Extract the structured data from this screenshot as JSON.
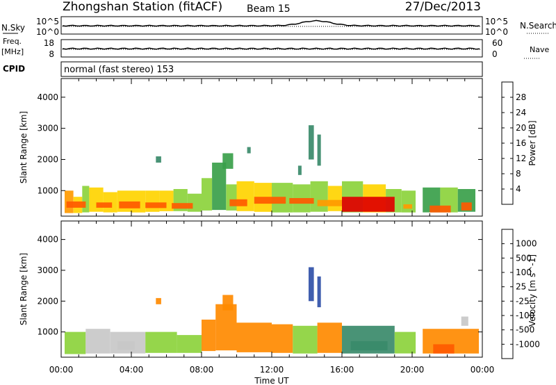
{
  "header": {
    "title": "Zhongshan Station (fitACF)",
    "beam": "Beam 15",
    "date": "27/Dec/2013"
  },
  "params": {
    "nsky_label": "N.Sky",
    "nsky_ticks": [
      "10^5",
      "10^0"
    ],
    "nsearch_label": "N.Search",
    "nsearch_ticks": [
      "10^5",
      "10^0"
    ],
    "freq_label": "Freq.",
    "freq_unit": "[MHz]",
    "freq_ticks": [
      "18",
      "8"
    ],
    "nave_label": "Nave",
    "nave_ticks": [
      "60",
      "0"
    ],
    "cpid_label": "CPID",
    "cpid_text": "normal (fast stereo) 153"
  },
  "chart_data": [
    {
      "type": "heatmap",
      "name": "power",
      "ylabel": "Slant Range [km]",
      "xlabel": "",
      "xlim": [
        0,
        24
      ],
      "ylim": [
        180,
        4600
      ],
      "y_ticks": [
        "4000",
        "3000",
        "2000",
        "1000"
      ],
      "colorbar": {
        "label": "Power [dB]",
        "ticks": [
          "28",
          "24",
          "20",
          "16",
          "12",
          "8",
          "4"
        ],
        "colors": [
          "#e00000",
          "#ff5a00",
          "#ff9a00",
          "#ffd400",
          "#8cd23c",
          "#3aa04a",
          "#3a8a6a",
          "#2a4aa6",
          "#1010f0"
        ]
      },
      "cells": [
        {
          "t": [
            0.2,
            0.7
          ],
          "r": [
            280,
            1000
          ],
          "v": 20
        },
        {
          "t": [
            0.7,
            1.2
          ],
          "r": [
            280,
            800
          ],
          "v": 16
        },
        {
          "t": [
            1.2,
            1.6
          ],
          "r": [
            300,
            1150
          ],
          "v": 14
        },
        {
          "t": [
            1.6,
            2.4
          ],
          "r": [
            320,
            1100
          ],
          "v": 16
        },
        {
          "t": [
            2.4,
            3.2
          ],
          "r": [
            300,
            950
          ],
          "v": 18
        },
        {
          "t": [
            3.2,
            4.0
          ],
          "r": [
            320,
            1000
          ],
          "v": 16
        },
        {
          "t": [
            4.0,
            4.8
          ],
          "r": [
            300,
            1000
          ],
          "v": 16
        },
        {
          "t": [
            4.8,
            5.6
          ],
          "r": [
            320,
            1000
          ],
          "v": 18
        },
        {
          "t": [
            5.6,
            6.4
          ],
          "r": [
            340,
            1000
          ],
          "v": 16
        },
        {
          "t": [
            6.4,
            7.2
          ],
          "r": [
            340,
            1050
          ],
          "v": 14
        },
        {
          "t": [
            7.2,
            8.0
          ],
          "r": [
            320,
            900
          ],
          "v": 12
        },
        {
          "t": [
            8.0,
            8.6
          ],
          "r": [
            360,
            1400
          ],
          "v": 12
        },
        {
          "t": [
            8.6,
            9.4
          ],
          "r": [
            380,
            1900
          ],
          "v": 10
        },
        {
          "t": [
            9.4,
            10.0
          ],
          "r": [
            360,
            1200
          ],
          "v": 14
        },
        {
          "t": [
            10.0,
            11.0
          ],
          "r": [
            340,
            1300
          ],
          "v": 16
        },
        {
          "t": [
            11.0,
            12.0
          ],
          "r": [
            320,
            1250
          ],
          "v": 16
        },
        {
          "t": [
            12.0,
            13.2
          ],
          "r": [
            300,
            1250
          ],
          "v": 14
        },
        {
          "t": [
            13.2,
            14.2
          ],
          "r": [
            300,
            1200
          ],
          "v": 14
        },
        {
          "t": [
            14.2,
            15.2
          ],
          "r": [
            320,
            1300
          ],
          "v": 12
        },
        {
          "t": [
            15.2,
            16.0
          ],
          "r": [
            340,
            1150
          ],
          "v": 16
        },
        {
          "t": [
            16.0,
            17.2
          ],
          "r": [
            300,
            1300
          ],
          "v": 14
        },
        {
          "t": [
            17.2,
            18.5
          ],
          "r": [
            300,
            1200
          ],
          "v": 16
        },
        {
          "t": [
            18.5,
            19.4
          ],
          "r": [
            300,
            1050
          ],
          "v": 14
        },
        {
          "t": [
            19.4,
            20.2
          ],
          "r": [
            300,
            1000
          ],
          "v": 12
        },
        {
          "t": [
            20.6,
            21.6
          ],
          "r": [
            300,
            1100
          ],
          "v": 10
        },
        {
          "t": [
            21.6,
            22.6
          ],
          "r": [
            300,
            1100
          ],
          "v": 12
        },
        {
          "t": [
            22.6,
            23.6
          ],
          "r": [
            320,
            1050
          ],
          "v": 10
        },
        {
          "t": [
            0.3,
            1.4
          ],
          "r": [
            450,
            650
          ],
          "v": 26
        },
        {
          "t": [
            2.0,
            2.9
          ],
          "r": [
            450,
            620
          ],
          "v": 24
        },
        {
          "t": [
            3.3,
            4.5
          ],
          "r": [
            430,
            650
          ],
          "v": 26
        },
        {
          "t": [
            4.8,
            6.0
          ],
          "r": [
            440,
            620
          ],
          "v": 24
        },
        {
          "t": [
            6.3,
            7.5
          ],
          "r": [
            420,
            600
          ],
          "v": 26
        },
        {
          "t": [
            9.6,
            10.6
          ],
          "r": [
            500,
            720
          ],
          "v": 24
        },
        {
          "t": [
            11.0,
            12.8
          ],
          "r": [
            580,
            800
          ],
          "v": 26
        },
        {
          "t": [
            13.0,
            14.4
          ],
          "r": [
            580,
            760
          ],
          "v": 26
        },
        {
          "t": [
            14.6,
            16.0
          ],
          "r": [
            500,
            700
          ],
          "v": 22
        },
        {
          "t": [
            16.0,
            19.0
          ],
          "r": [
            320,
            800
          ],
          "v": 30
        },
        {
          "t": [
            19.5,
            20.0
          ],
          "r": [
            420,
            560
          ],
          "v": 22
        },
        {
          "t": [
            21.0,
            22.2
          ],
          "r": [
            300,
            520
          ],
          "v": 26
        },
        {
          "t": [
            22.8,
            23.4
          ],
          "r": [
            360,
            620
          ],
          "v": 24
        },
        {
          "t": [
            14.1,
            14.4
          ],
          "r": [
            2000,
            3100
          ],
          "v": 6
        },
        {
          "t": [
            14.6,
            14.8
          ],
          "r": [
            1800,
            2800
          ],
          "v": 6
        },
        {
          "t": [
            9.2,
            9.8
          ],
          "r": [
            1700,
            2200
          ],
          "v": 8
        },
        {
          "t": [
            5.4,
            5.7
          ],
          "r": [
            1900,
            2100
          ],
          "v": 6
        },
        {
          "t": [
            10.6,
            10.8
          ],
          "r": [
            2200,
            2400
          ],
          "v": 6
        },
        {
          "t": [
            13.5,
            13.7
          ],
          "r": [
            1500,
            1800
          ],
          "v": 6
        }
      ]
    },
    {
      "type": "heatmap",
      "name": "velocity",
      "ylabel": "Slant Range [km]",
      "xlabel": "Time UT",
      "xlim": [
        0,
        24
      ],
      "ylim": [
        180,
        4600
      ],
      "y_ticks": [
        "4000",
        "3000",
        "2000",
        "1000"
      ],
      "x_ticks": [
        "00:00",
        "04:00",
        "08:00",
        "12:00",
        "16:00",
        "20:00",
        "00:00"
      ],
      "colorbar": {
        "label": "Velocity [m s^-1]",
        "ticks": [
          "1000",
          "500",
          "100",
          "25",
          "-25",
          "-100",
          "-500",
          "-1000"
        ],
        "colors": [
          "#2040c0",
          "#3050a8",
          "#3a8a6a",
          "#3aa04a",
          "#8cd23c",
          "#c8c8c8",
          "#ffb000",
          "#ff8a00",
          "#ff5a00",
          "#e00000"
        ]
      },
      "cells": [
        {
          "t": [
            0.2,
            1.4
          ],
          "r": [
            280,
            1000
          ],
          "v": 60
        },
        {
          "t": [
            1.4,
            2.8
          ],
          "r": [
            300,
            1100
          ],
          "v": 20
        },
        {
          "t": [
            2.8,
            4.8
          ],
          "r": [
            300,
            1000
          ],
          "v": 0
        },
        {
          "t": [
            4.8,
            6.6
          ],
          "r": [
            320,
            1000
          ],
          "v": 30
        },
        {
          "t": [
            6.6,
            8.0
          ],
          "r": [
            320,
            900
          ],
          "v": 60
        },
        {
          "t": [
            8.0,
            8.8
          ],
          "r": [
            380,
            1400
          ],
          "v": -120
        },
        {
          "t": [
            8.8,
            10.0
          ],
          "r": [
            400,
            1900
          ],
          "v": -200
        },
        {
          "t": [
            10.0,
            12.0
          ],
          "r": [
            340,
            1300
          ],
          "v": -150
        },
        {
          "t": [
            12.0,
            13.2
          ],
          "r": [
            320,
            1250
          ],
          "v": -100
        },
        {
          "t": [
            13.2,
            14.6
          ],
          "r": [
            300,
            1200
          ],
          "v": 60
        },
        {
          "t": [
            14.6,
            16.0
          ],
          "r": [
            320,
            1300
          ],
          "v": -120
        },
        {
          "t": [
            16.0,
            19.0
          ],
          "r": [
            300,
            1200
          ],
          "v": 200
        },
        {
          "t": [
            19.0,
            20.2
          ],
          "r": [
            300,
            1000
          ],
          "v": 60
        },
        {
          "t": [
            20.6,
            22.0
          ],
          "r": [
            300,
            1100
          ],
          "v": -300
        },
        {
          "t": [
            22.0,
            23.8
          ],
          "r": [
            300,
            1100
          ],
          "v": -150
        },
        {
          "t": [
            3.2,
            4.2
          ],
          "r": [
            420,
            700
          ],
          "v": 0
        },
        {
          "t": [
            16.5,
            18.6
          ],
          "r": [
            400,
            700
          ],
          "v": 400
        },
        {
          "t": [
            21.2,
            22.4
          ],
          "r": [
            300,
            600
          ],
          "v": -600
        },
        {
          "t": [
            14.1,
            14.4
          ],
          "r": [
            2000,
            3100
          ],
          "v": 800
        },
        {
          "t": [
            14.6,
            14.8
          ],
          "r": [
            1800,
            2800
          ],
          "v": 600
        },
        {
          "t": [
            9.2,
            9.8
          ],
          "r": [
            1700,
            2200
          ],
          "v": -100
        },
        {
          "t": [
            5.4,
            5.7
          ],
          "r": [
            1900,
            2100
          ],
          "v": -100
        },
        {
          "t": [
            22.8,
            23.2
          ],
          "r": [
            1200,
            1500
          ],
          "v": 0
        }
      ]
    }
  ]
}
